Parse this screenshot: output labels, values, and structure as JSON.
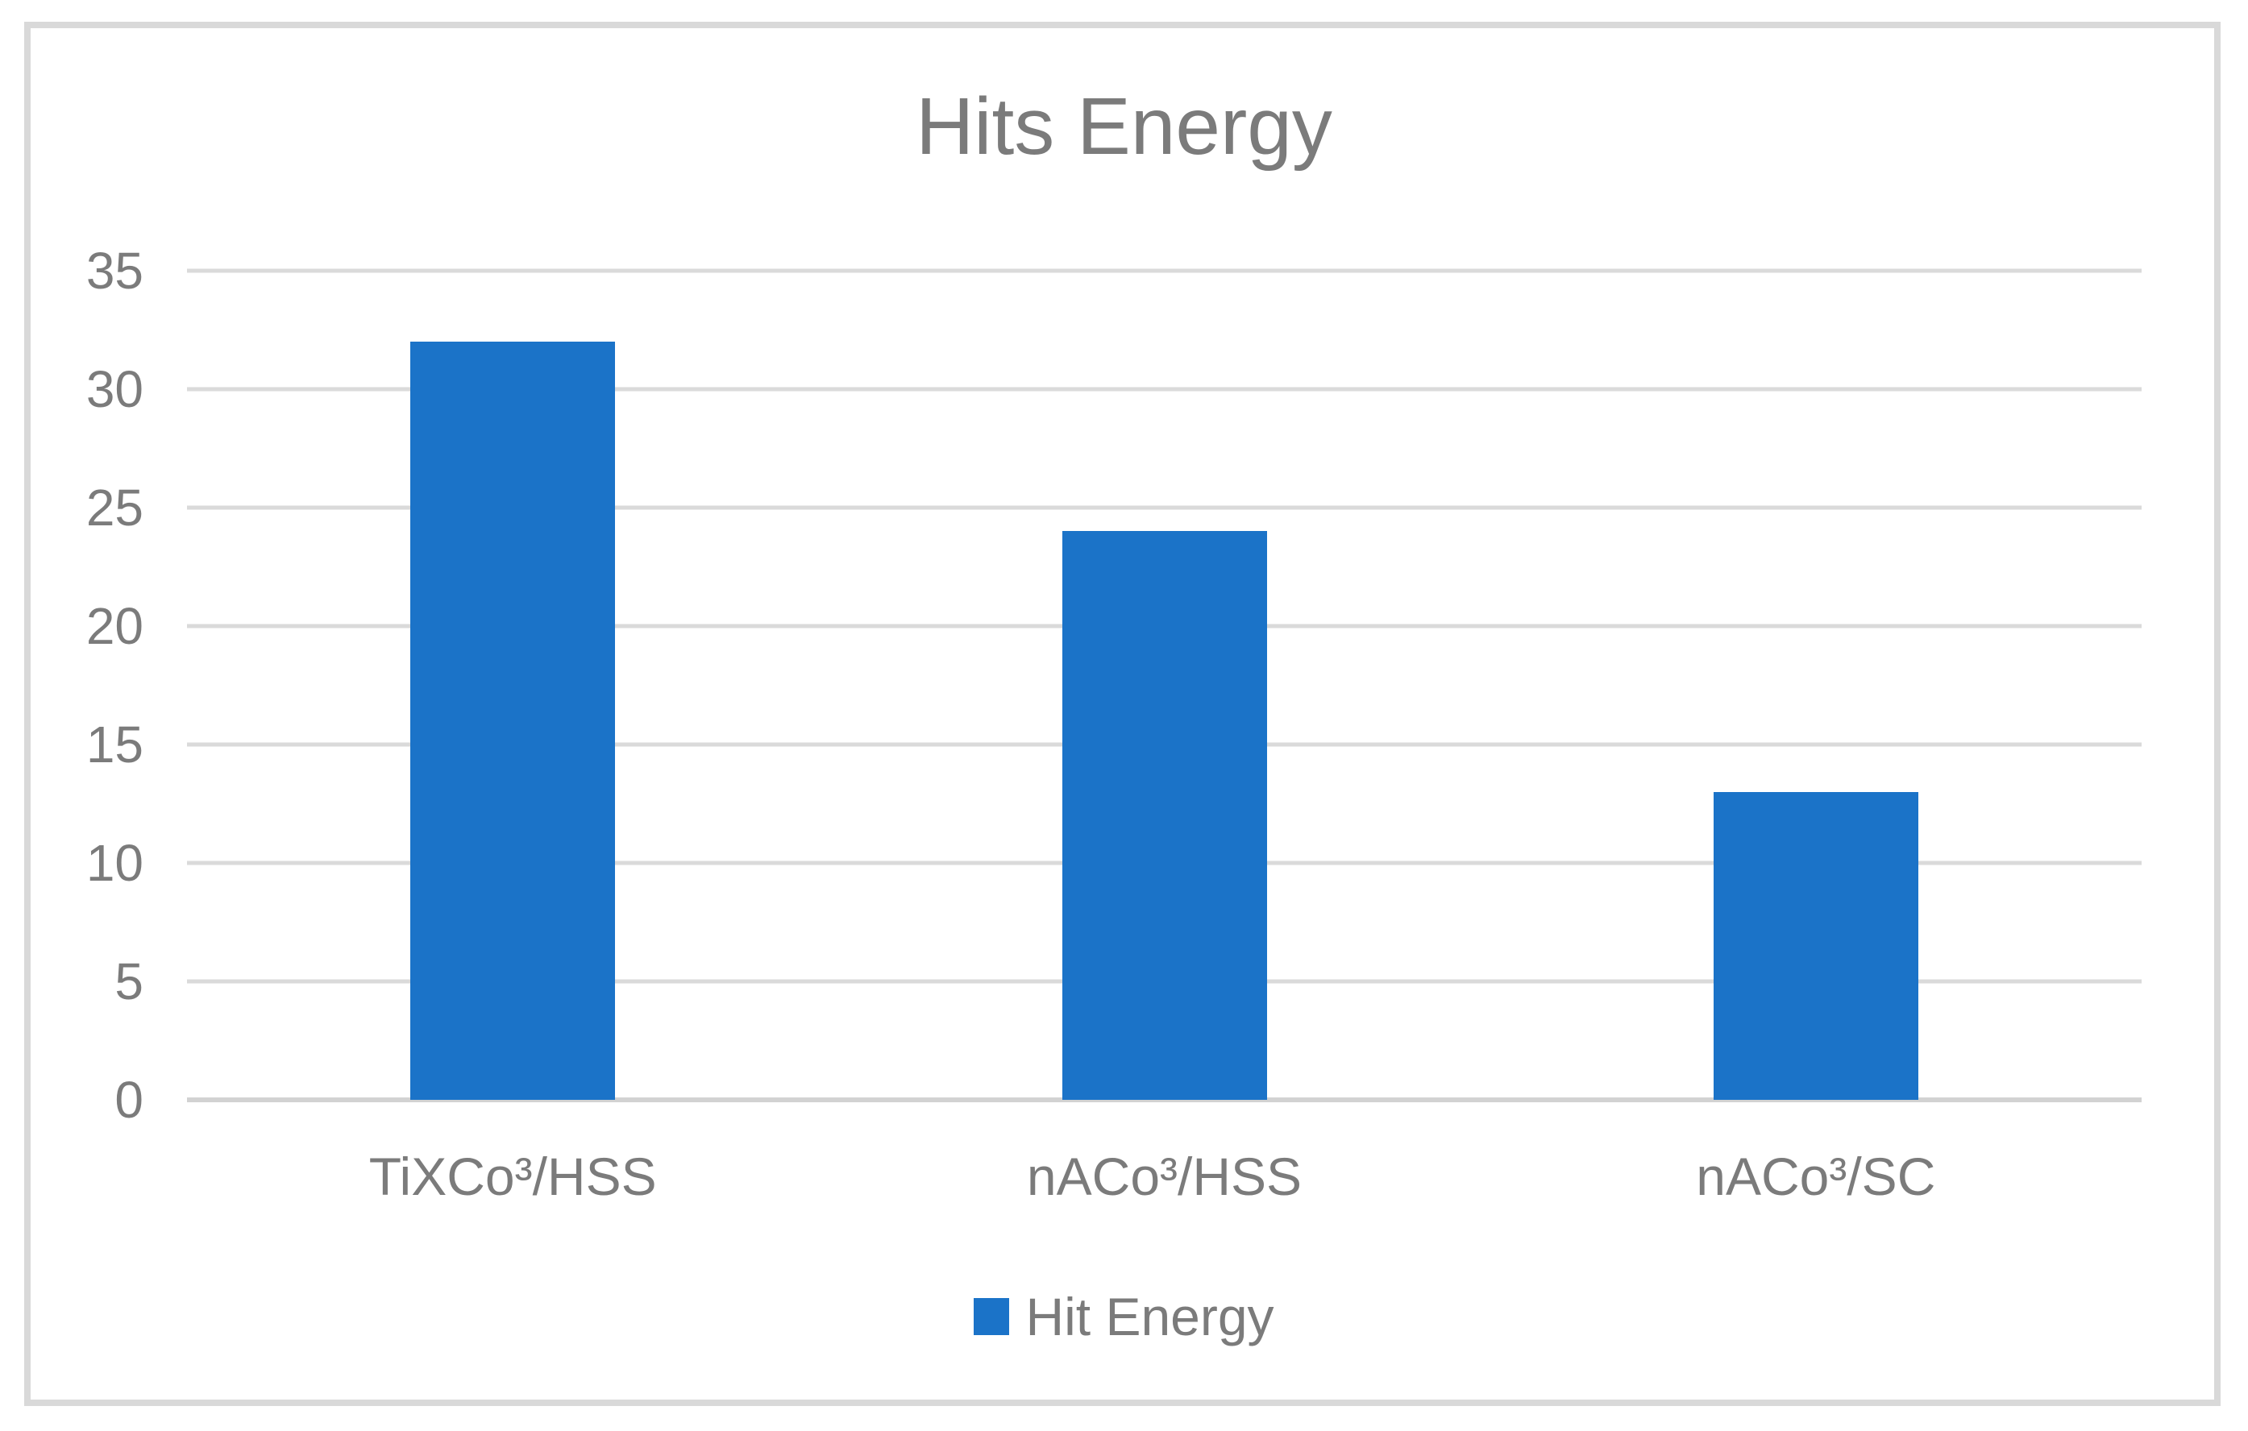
{
  "chart_data": {
    "type": "bar",
    "title": "Hits Energy",
    "categories": [
      "TiXCo³/HSS",
      "nACo³/HSS",
      "nACo³/SC"
    ],
    "series": [
      {
        "name": "Hit Energy",
        "values": [
          32,
          24,
          13
        ]
      }
    ],
    "xlabel": "",
    "ylabel": "",
    "ylim": [
      0,
      35
    ],
    "yticks": [
      0,
      5,
      10,
      15,
      20,
      25,
      30,
      35
    ],
    "grid": true,
    "legend": {
      "position": "bottom",
      "entries": [
        "Hit Energy"
      ]
    },
    "colors": {
      "bar": "#1B73C8",
      "text": "#7B7B7B",
      "title": "#7B7B7B",
      "gridline": "#DADADA",
      "axis_line": "#D2D2D2",
      "frame_border": "#D9D9D9",
      "background": "#FFFFFF"
    }
  }
}
